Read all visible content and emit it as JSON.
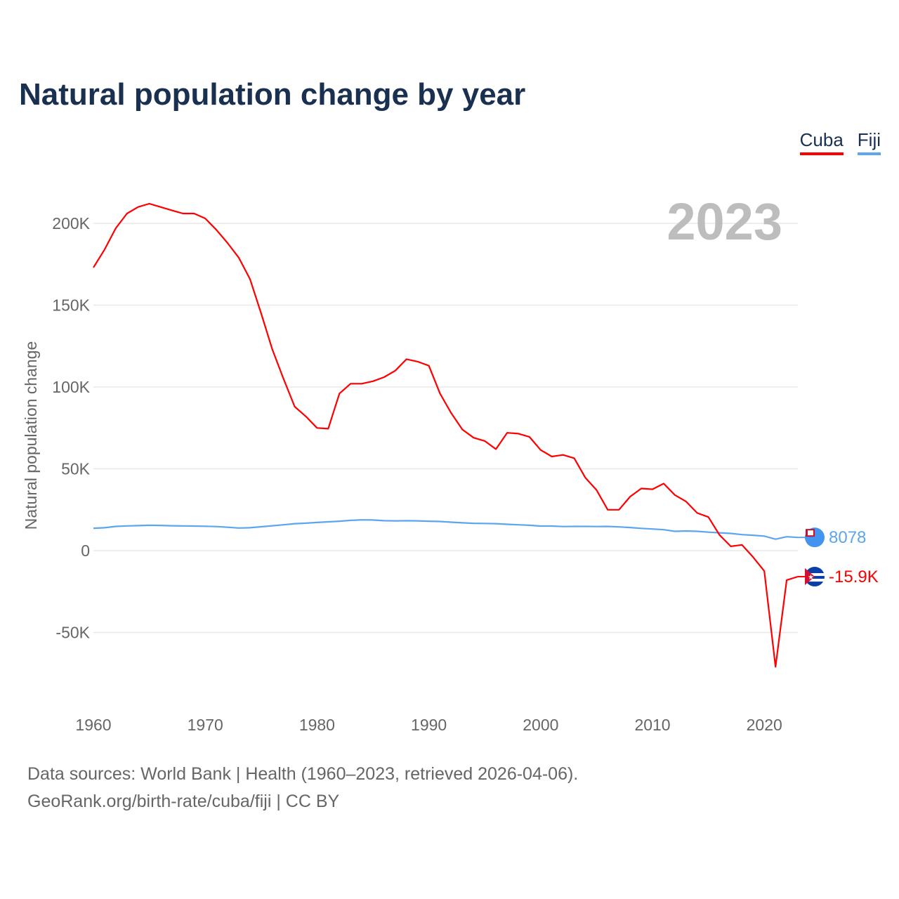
{
  "title": "Natural population change by year",
  "legend": [
    {
      "name": "Cuba",
      "color": "#ff0000"
    },
    {
      "name": "Fiji",
      "color": "#5ba6ee"
    }
  ],
  "year_label": "2023",
  "end_labels": {
    "Cuba": "-15.9K",
    "Fiji": "8078"
  },
  "source_line1": "Data sources: World Bank | Health (1960–2023, retrieved 2026-04-06).",
  "source_line2": "GeoRank.org/birth-rate/cuba/fiji | CC BY",
  "chart_data": {
    "type": "line",
    "title": "Natural population change by year",
    "xlabel": "",
    "ylabel": "Natural population change",
    "xlim": [
      1960,
      2023
    ],
    "ylim": [
      -90000,
      220000
    ],
    "xticks": [
      "1960",
      "1970",
      "1980",
      "1990",
      "2000",
      "2010",
      "2020"
    ],
    "yticks": [
      {
        "v": 200000,
        "label": "200K"
      },
      {
        "v": 150000,
        "label": "150K"
      },
      {
        "v": 100000,
        "label": "100K"
      },
      {
        "v": 50000,
        "label": "50K"
      },
      {
        "v": 0,
        "label": "0"
      },
      {
        "v": -50000,
        "label": "-50K"
      }
    ],
    "x_start": 1960,
    "series": [
      {
        "name": "Cuba",
        "color": "#ff0000",
        "values": [
          173000,
          184000,
          197000,
          206000,
          210000,
          212000,
          210000,
          208000,
          206000,
          206000,
          203000,
          196000,
          188000,
          179000,
          166000,
          145000,
          123000,
          105000,
          88000,
          82000,
          75000,
          74500,
          96000,
          102000,
          102000,
          103500,
          106000,
          110000,
          117000,
          115500,
          113000,
          96000,
          84000,
          74000,
          69000,
          67000,
          62000,
          72000,
          71500,
          69500,
          61500,
          57500,
          58500,
          56500,
          44500,
          37000,
          25000,
          25000,
          33000,
          38000,
          37500,
          41000,
          34000,
          30000,
          23000,
          20500,
          9500,
          2600,
          3500,
          -4000,
          -12500,
          -71000,
          -18000,
          -15900
        ]
      },
      {
        "name": "Fiji",
        "color": "#5ba6ee",
        "values": [
          13700,
          14000,
          14800,
          15100,
          15300,
          15500,
          15400,
          15200,
          15100,
          15000,
          14900,
          14700,
          14300,
          13800,
          14000,
          14600,
          15200,
          15800,
          16500,
          16800,
          17200,
          17600,
          18000,
          18500,
          18800,
          18700,
          18300,
          18200,
          18300,
          18200,
          18000,
          17800,
          17400,
          17000,
          16700,
          16600,
          16500,
          16100,
          15800,
          15500,
          15000,
          15000,
          14700,
          14800,
          14800,
          14700,
          14800,
          14500,
          14100,
          13600,
          13200,
          12800,
          11800,
          12000,
          11800,
          11300,
          10900,
          10500,
          9800,
          9400,
          8900,
          7000,
          8500,
          8078
        ]
      }
    ]
  }
}
